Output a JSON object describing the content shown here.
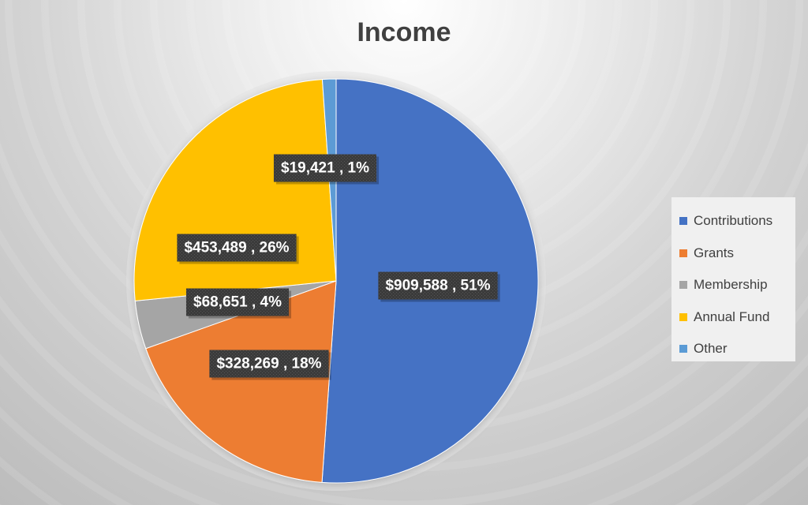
{
  "chart_data": {
    "type": "pie",
    "title": "Income",
    "categories": [
      "Contributions",
      "Grants",
      "Membership",
      "Annual Fund",
      "Other"
    ],
    "values": [
      909588,
      328269,
      68651,
      453489,
      19421
    ],
    "percent_labels": [
      51,
      18,
      4,
      26,
      1
    ],
    "data_labels": [
      "$909,588 , 51%",
      "$328,269 , 18%",
      "$68,651 , 4%",
      "$453,489 , 26%",
      "$19,421 , 1%"
    ],
    "colors": [
      "#4472c4",
      "#ed7d31",
      "#a5a5a5",
      "#ffc000",
      "#5b9bd5"
    ],
    "label_background": "#404040",
    "legend_placement": "right"
  }
}
